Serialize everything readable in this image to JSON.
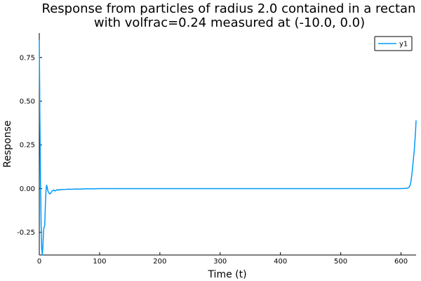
{
  "chart_data": {
    "type": "line",
    "title_line1": "Response from particles of radius 2.0 contained in a rectan",
    "title_line2": "with volfrac=0.24 measured at (-10.0, 0.0)",
    "xlabel": "Time (t)",
    "ylabel": "Response",
    "xlim": [
      0,
      625
    ],
    "ylim": [
      -0.38,
      0.89
    ],
    "xticks": [
      0,
      100,
      200,
      300,
      400,
      500,
      600
    ],
    "xtick_labels": [
      "0",
      "100",
      "200",
      "300",
      "400",
      "500",
      "600"
    ],
    "yticks": [
      -0.25,
      0,
      0.25,
      0.5,
      0.75
    ],
    "ytick_labels": [
      "-0.25",
      "0.00",
      "0.25",
      "0.50",
      "0.75"
    ],
    "grid": false,
    "legend_position": "top-right",
    "series": [
      {
        "name": "y1",
        "color": "#009AFA",
        "x": [
          0,
          1,
          2,
          3,
          4,
          5,
          6,
          7,
          8,
          9,
          10,
          11,
          12,
          13,
          14,
          15,
          16,
          17,
          18,
          19,
          20,
          22,
          24,
          26,
          28,
          30,
          32,
          34,
          36,
          38,
          40,
          45,
          50,
          55,
          60,
          65,
          70,
          80,
          90,
          100,
          150,
          200,
          300,
          400,
          500,
          550,
          600,
          610,
          612,
          614,
          616,
          618,
          620,
          622,
          624,
          625
        ],
        "y": [
          0.85,
          0.4,
          0.05,
          -0.2,
          -0.34,
          -0.39,
          -0.33,
          -0.24,
          -0.22,
          -0.21,
          -0.1,
          -0.02,
          0.02,
          0.01,
          -0.01,
          -0.02,
          -0.025,
          -0.03,
          -0.03,
          -0.025,
          -0.02,
          -0.012,
          -0.008,
          -0.014,
          -0.01,
          -0.006,
          -0.009,
          -0.005,
          -0.007,
          -0.004,
          -0.006,
          -0.004,
          -0.003,
          -0.004,
          -0.002,
          -0.003,
          -0.002,
          -0.001,
          -0.001,
          0.0,
          0.0,
          0.0,
          0.0,
          0.0,
          0.0,
          0.0,
          0.0,
          0.002,
          0.005,
          0.01,
          0.03,
          0.08,
          0.15,
          0.22,
          0.32,
          0.39
        ]
      }
    ]
  }
}
